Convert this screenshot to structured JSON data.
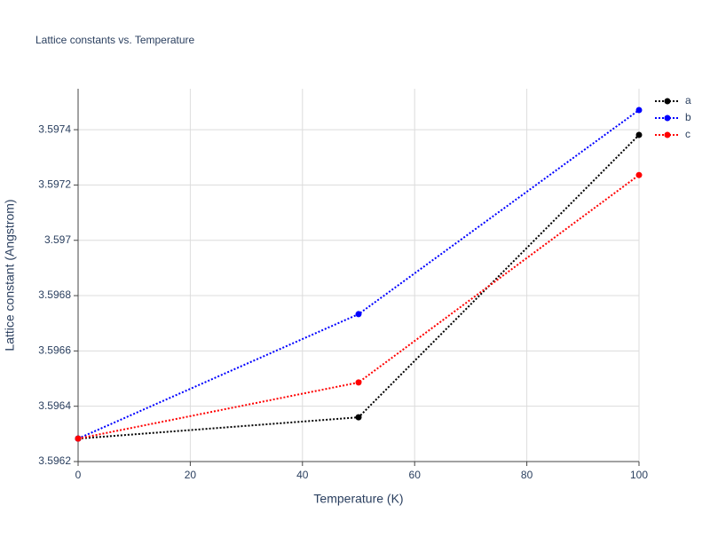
{
  "chart_data": {
    "type": "line",
    "title": "Lattice constants vs. Temperature",
    "x_label": "Temperature (K)",
    "y_label": "Lattice constant (Angstrom)",
    "x": [
      0,
      50,
      100
    ],
    "series": [
      {
        "name": "a",
        "color": "#000000",
        "values": [
          3.596283,
          3.59636,
          3.597381
        ]
      },
      {
        "name": "b",
        "color": "#0000ff",
        "values": [
          3.596283,
          3.596733,
          3.597471
        ]
      },
      {
        "name": "c",
        "color": "#ff0000",
        "values": [
          3.596283,
          3.596486,
          3.597236
        ]
      }
    ],
    "xlim": [
      0,
      100
    ],
    "xticks": [
      0,
      20,
      40,
      60,
      80,
      100
    ],
    "ylim": [
      3.5962,
      3.597548
    ],
    "yticks": [
      3.5962,
      3.5964,
      3.5966,
      3.5968,
      3.597,
      3.5972,
      3.5974
    ],
    "grid": true,
    "legend": "right",
    "line_style": "dotted"
  }
}
